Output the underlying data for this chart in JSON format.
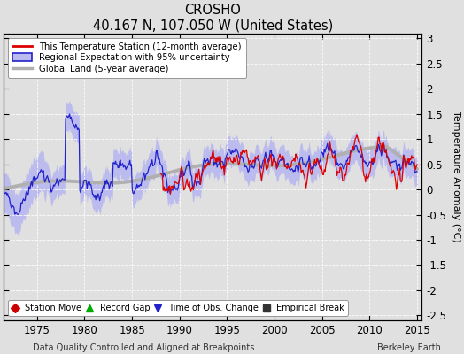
{
  "title": "CROSHO",
  "subtitle": "40.167 N, 107.050 W (United States)",
  "ylabel": "Temperature Anomaly (°C)",
  "xlabel_left": "Data Quality Controlled and Aligned at Breakpoints",
  "xlabel_right": "Berkeley Earth",
  "ylim": [
    -2.6,
    3.1
  ],
  "xlim": [
    1971.5,
    2015.5
  ],
  "yticks": [
    -2.5,
    -2,
    -1.5,
    -1,
    -0.5,
    0,
    0.5,
    1,
    1.5,
    2,
    2.5,
    3
  ],
  "xticks": [
    1975,
    1980,
    1985,
    1990,
    1995,
    2000,
    2005,
    2010,
    2015
  ],
  "station_color": "#dd0000",
  "regional_color": "#2222cc",
  "regional_fill_color": "#bbbbee",
  "global_color": "#b0b0b0",
  "background_color": "#e0e0e0",
  "legend_entries": [
    "This Temperature Station (12-month average)",
    "Regional Expectation with 95% uncertainty",
    "Global Land (5-year average)"
  ],
  "marker_legend": [
    "Station Move",
    "Record Gap",
    "Time of Obs. Change",
    "Empirical Break"
  ],
  "marker_colors": [
    "#cc0000",
    "#00aa00",
    "#2222cc",
    "#333333"
  ],
  "marker_symbols": [
    "D",
    "^",
    "v",
    "s"
  ],
  "figsize": [
    5.24,
    4.0
  ],
  "dpi": 100
}
